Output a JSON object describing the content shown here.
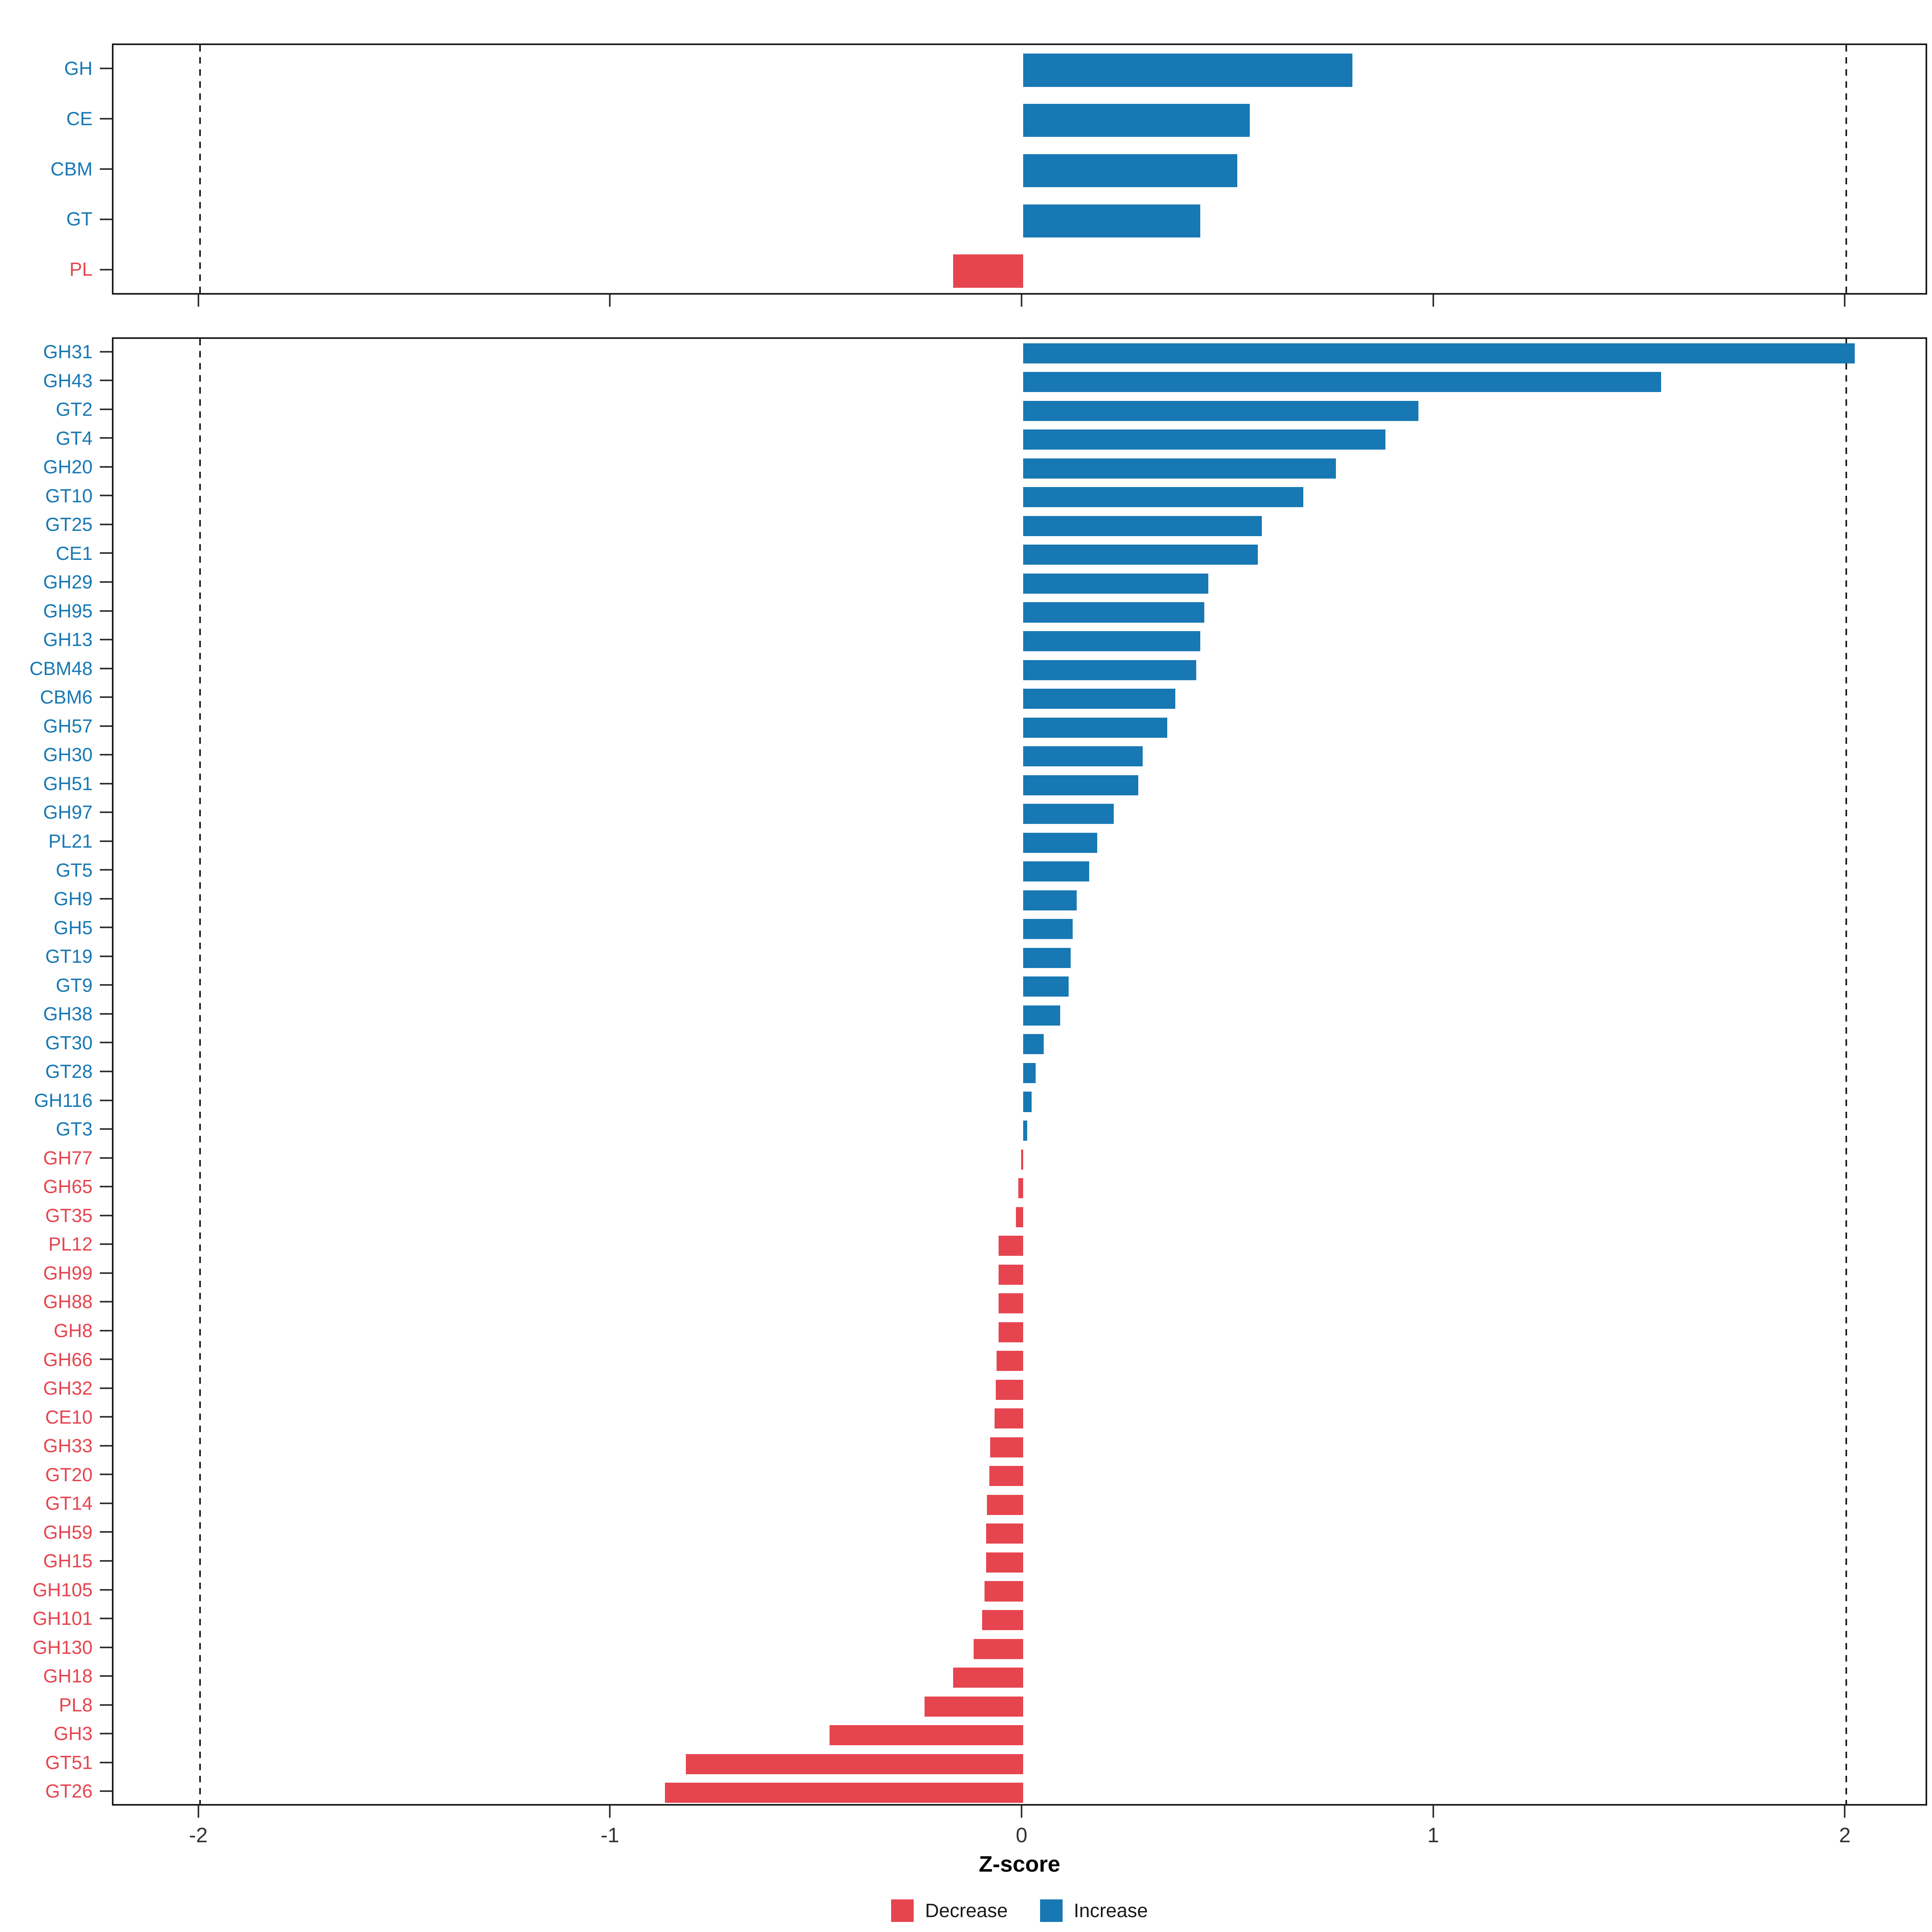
{
  "chart_data": {
    "type": "bar",
    "orientation": "horizontal",
    "title": "",
    "xlabel": "Z-score",
    "ylabel": "",
    "xlim": [
      -2.21,
      2.2
    ],
    "x_ticks": [
      "-2",
      "-1",
      "0",
      "1",
      "2"
    ],
    "x_tick_values": [
      -2,
      -1,
      0,
      1,
      2
    ],
    "reference_lines": [
      -2,
      2
    ],
    "grid": false,
    "legend_position": "bottom",
    "colors": {
      "increase": "#1878B4",
      "decrease": "#E64550"
    },
    "legend": [
      {
        "label": "Decrease",
        "key": "decrease"
      },
      {
        "label": "Increase",
        "key": "increase"
      }
    ],
    "panels": [
      {
        "name": "cazyme-class",
        "categories": [
          "GH",
          "CE",
          "CBM",
          "GT",
          "PL"
        ],
        "values": [
          0.8,
          0.55,
          0.52,
          0.43,
          -0.17
        ]
      },
      {
        "name": "cazyme-family",
        "categories": [
          "GH31",
          "GH43",
          "GT2",
          "GT4",
          "GH20",
          "GT10",
          "GT25",
          "CE1",
          "GH29",
          "GH95",
          "GH13",
          "CBM48",
          "CBM6",
          "GH57",
          "GH30",
          "GH51",
          "GH97",
          "PL21",
          "GT5",
          "GH9",
          "GH5",
          "GT19",
          "GT9",
          "GH38",
          "GT30",
          "GT28",
          "GH116",
          "GT3",
          "GH77",
          "GH65",
          "GT35",
          "PL12",
          "GH99",
          "GH88",
          "GH8",
          "GH66",
          "GH32",
          "CE10",
          "GH33",
          "GT20",
          "GT14",
          "GH59",
          "GH15",
          "GH105",
          "GH101",
          "GH130",
          "GH18",
          "PL8",
          "GH3",
          "GT51",
          "GT26"
        ],
        "values": [
          2.02,
          1.55,
          0.96,
          0.88,
          0.76,
          0.68,
          0.58,
          0.57,
          0.45,
          0.44,
          0.43,
          0.42,
          0.37,
          0.35,
          0.29,
          0.28,
          0.22,
          0.18,
          0.16,
          0.13,
          0.12,
          0.115,
          0.11,
          0.09,
          0.05,
          0.03,
          0.02,
          0.01,
          -0.005,
          -0.012,
          -0.018,
          -0.06,
          -0.06,
          -0.06,
          -0.06,
          -0.065,
          -0.067,
          -0.07,
          -0.08,
          -0.082,
          -0.088,
          -0.09,
          -0.09,
          -0.094,
          -0.1,
          -0.12,
          -0.17,
          -0.24,
          -0.47,
          -0.82,
          -0.87
        ]
      }
    ]
  }
}
